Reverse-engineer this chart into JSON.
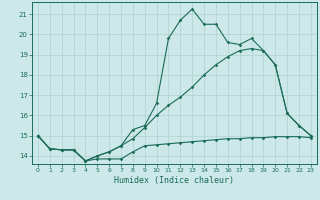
{
  "background_color": "#cce8e8",
  "grid_color": "#b0d0d0",
  "line_color": "#1a6b5a",
  "xlabel": "Humidex (Indice chaleur)",
  "ylabel_ticks": [
    14,
    15,
    16,
    17,
    18,
    19,
    20,
    21
  ],
  "xticks": [
    0,
    1,
    2,
    3,
    4,
    5,
    6,
    7,
    8,
    9,
    10,
    11,
    12,
    13,
    14,
    15,
    16,
    17,
    18,
    19,
    20,
    21,
    22,
    23
  ],
  "xlim": [
    -0.5,
    23.5
  ],
  "ylim": [
    13.6,
    21.6
  ],
  "line1_x": [
    0,
    1,
    2,
    3,
    4,
    5,
    6,
    7,
    8,
    9,
    10,
    11,
    12,
    13,
    14,
    15,
    16,
    17,
    18,
    19,
    20,
    21,
    22,
    23
  ],
  "line1_y": [
    15.0,
    14.35,
    14.3,
    14.3,
    13.75,
    13.85,
    13.85,
    13.85,
    14.2,
    14.5,
    14.55,
    14.6,
    14.65,
    14.7,
    14.75,
    14.8,
    14.85,
    14.85,
    14.9,
    14.9,
    14.95,
    14.95,
    14.95,
    14.9
  ],
  "line2_x": [
    0,
    1,
    2,
    3,
    4,
    5,
    6,
    7,
    8,
    9,
    10,
    11,
    12,
    13,
    14,
    15,
    16,
    17,
    18,
    19,
    20,
    21,
    22,
    23
  ],
  "line2_y": [
    15.0,
    14.35,
    14.3,
    14.3,
    13.75,
    14.0,
    14.2,
    14.5,
    14.85,
    15.4,
    16.0,
    16.5,
    16.9,
    17.4,
    18.0,
    18.5,
    18.9,
    19.2,
    19.3,
    19.2,
    18.5,
    16.1,
    15.5,
    15.0
  ],
  "line3_x": [
    0,
    1,
    2,
    3,
    4,
    5,
    6,
    7,
    8,
    9,
    10,
    11,
    12,
    13,
    14,
    15,
    16,
    17,
    18,
    19,
    20,
    21,
    22,
    23
  ],
  "line3_y": [
    15.0,
    14.35,
    14.3,
    14.3,
    13.75,
    14.0,
    14.2,
    14.5,
    15.3,
    15.5,
    16.6,
    19.8,
    20.7,
    21.25,
    20.5,
    20.5,
    19.6,
    19.5,
    19.8,
    19.2,
    18.5,
    16.1,
    15.5,
    15.0
  ]
}
